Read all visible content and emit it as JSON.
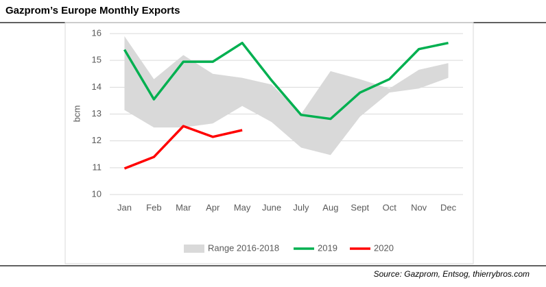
{
  "chart_data": {
    "type": "line",
    "title": "Gazprom’s Europe Monthly Exports",
    "ylabel": "bcm",
    "source": "Source: Gazprom, Entsog, thierrybros.com",
    "categories": [
      "Jan",
      "Feb",
      "Mar",
      "Apr",
      "May",
      "June",
      "July",
      "Aug",
      "Sept",
      "Oct",
      "Nov",
      "Dec"
    ],
    "series": [
      {
        "name": "Range 2016-2018",
        "color": "#d9d9d9",
        "kind": "band",
        "high": [
          15.9,
          14.3,
          15.2,
          14.5,
          14.35,
          14.1,
          13.0,
          14.6,
          14.3,
          13.95,
          14.65,
          14.9
        ],
        "low": [
          13.15,
          12.5,
          12.5,
          12.65,
          13.3,
          12.7,
          11.75,
          11.47,
          12.9,
          13.8,
          13.95,
          14.35
        ]
      },
      {
        "name": "2019",
        "color": "#00b050",
        "values": [
          15.4,
          13.55,
          14.95,
          14.95,
          15.65,
          14.25,
          12.97,
          12.82,
          13.8,
          14.3,
          15.42,
          15.65
        ]
      },
      {
        "name": "2020",
        "color": "#ff0000",
        "values": [
          10.97,
          11.4,
          12.55,
          12.15,
          12.4,
          null,
          null,
          null,
          null,
          null,
          null,
          null
        ]
      }
    ],
    "ylim": [
      10,
      16
    ],
    "yticks": [
      10,
      11,
      12,
      13,
      14,
      15,
      16
    ],
    "grid": true,
    "legend": "bottom"
  }
}
